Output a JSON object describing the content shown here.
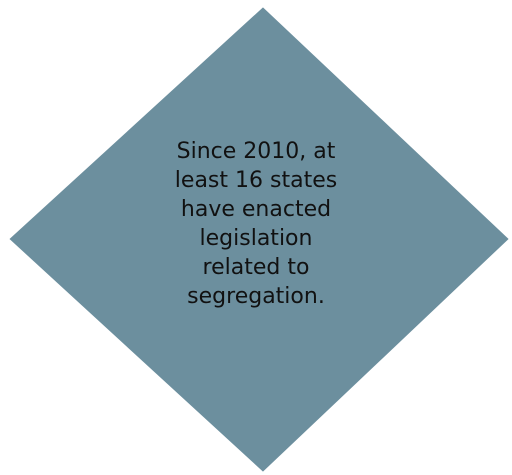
{
  "diamond": {
    "fill_color": "#6c8f9e",
    "stroke_color": "#ffffff",
    "lines": [
      "Since 2010, at",
      "least 16 states",
      "have enacted",
      "legislation",
      "related to",
      "segregation."
    ]
  }
}
